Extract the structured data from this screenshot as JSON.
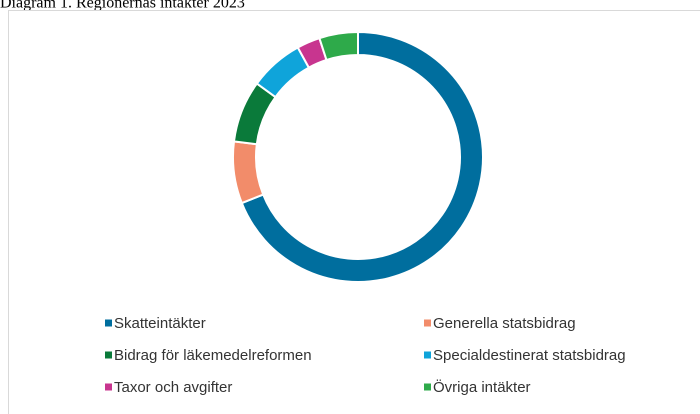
{
  "chart_data": {
    "type": "donut",
    "title": "Diagram 1. Regionernas intäkter 2023",
    "categories": [
      "Skatteintäkter",
      "Generella statsbidrag",
      "Bidrag för läkemedelreformen",
      "Specialdestinerat statsbidrag",
      "Taxor och avgifter",
      "Övriga intäkter"
    ],
    "values": [
      69,
      8,
      8,
      7,
      3,
      5
    ],
    "colors": [
      "#006e9e",
      "#f28c6a",
      "#0a7a3a",
      "#0fa4da",
      "#c8358f",
      "#2eaa4a"
    ]
  }
}
